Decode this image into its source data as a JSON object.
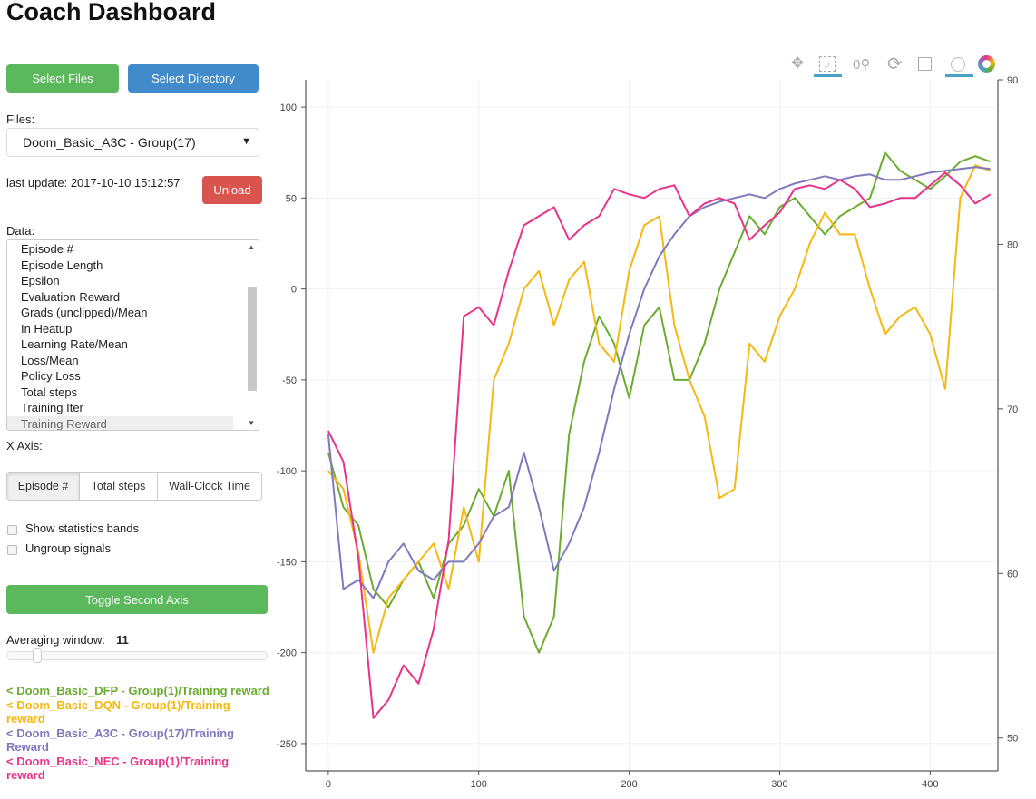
{
  "title": "Coach Dashboard",
  "buttons": {
    "select_files": "Select Files",
    "select_directory": "Select Directory",
    "unload": "Unload",
    "toggle_second_axis": "Toggle Second Axis"
  },
  "files": {
    "label": "Files:",
    "selected": "Doom_Basic_A3C - Group(17)"
  },
  "last_update": "last update: 2017-10-10 15:12:57",
  "data": {
    "label": "Data:",
    "items": [
      "Episode #",
      "Episode Length",
      "Epsilon",
      "Evaluation Reward",
      "Grads (unclipped)/Mean",
      "In Heatup",
      "Learning Rate/Mean",
      "Loss/Mean",
      "Policy Loss",
      "Total steps",
      "Training Iter",
      "Training Reward"
    ],
    "selected": "Training Reward"
  },
  "x_axis": {
    "label": "X Axis:",
    "options": [
      "Episode #",
      "Total steps",
      "Wall-Clock Time"
    ],
    "selected": "Episode #"
  },
  "checkboxes": [
    {
      "label": "Show statistics bands",
      "checked": false
    },
    {
      "label": "Ungroup signals",
      "checked": false
    }
  ],
  "averaging": {
    "label": "Averaging window:",
    "value": "11",
    "fraction": 0.1
  },
  "legend": [
    {
      "text": "< Doom_Basic_DFP - Group(1)/Training reward",
      "color": "#6aac2f"
    },
    {
      "text": "< Doom_Basic_DQN - Group(1)/Training reward",
      "color": "#f5b810"
    },
    {
      "text": "< Doom_Basic_A3C - Group(17)/Training Reward",
      "color": "#7f79bd"
    },
    {
      "text": "< Doom_Basic_NEC - Group(1)/Training reward",
      "color": "#e9338a"
    }
  ],
  "toolbar": [
    "pan-icon",
    "box-zoom-icon",
    "wheel-zoom-icon",
    "reset-icon",
    "save-icon",
    "crosshair-icon",
    "bokeh-logo-icon"
  ],
  "chart_data": {
    "type": "line",
    "xlim": [
      -15,
      445
    ],
    "ylim": [
      -265,
      115
    ],
    "y2lim": [
      48,
      90
    ],
    "xticks": [
      "0",
      "100",
      "200",
      "300",
      "400"
    ],
    "yticks": [
      "100",
      "50",
      "0",
      "-50",
      "-100",
      "-150",
      "-200",
      "-250"
    ],
    "y2ticks": [
      "90",
      "80",
      "70",
      "60",
      "50"
    ],
    "grid": true,
    "x": [
      0,
      10,
      20,
      30,
      40,
      50,
      60,
      70,
      80,
      90,
      100,
      110,
      120,
      130,
      140,
      150,
      160,
      170,
      180,
      190,
      200,
      210,
      220,
      230,
      240,
      250,
      260,
      270,
      280,
      290,
      300,
      310,
      320,
      330,
      340,
      350,
      360,
      370,
      380,
      390,
      400,
      410,
      420,
      430,
      440
    ],
    "series": [
      {
        "name": "< Doom_Basic_DFP - Group(1)/Training reward",
        "color": "#6aac2f",
        "values": [
          -90,
          -120,
          -130,
          -165,
          -175,
          -160,
          -150,
          -170,
          -140,
          -130,
          -110,
          -125,
          -100,
          -180,
          -200,
          -180,
          -80,
          -40,
          -15,
          -30,
          -60,
          -20,
          -10,
          -50,
          -50,
          -30,
          0,
          20,
          40,
          30,
          45,
          50,
          40,
          30,
          40,
          45,
          50,
          75,
          65,
          60,
          55,
          62,
          70,
          73,
          70
        ]
      },
      {
        "name": "< Doom_Basic_DQN - Group(1)/Training reward",
        "color": "#f5b810",
        "values": [
          -100,
          -110,
          -145,
          -200,
          -170,
          -160,
          -150,
          -140,
          -165,
          -120,
          -150,
          -50,
          -30,
          0,
          10,
          -20,
          5,
          15,
          -30,
          -40,
          10,
          35,
          40,
          -20,
          -50,
          -70,
          -115,
          -110,
          -30,
          -40,
          -15,
          0,
          25,
          42,
          30,
          30,
          0,
          -25,
          -15,
          -10,
          -25,
          -55,
          50,
          68,
          65
        ]
      },
      {
        "name": "< Doom_Basic_A3C - Group(17)/Training Reward",
        "color": "#7f79bd",
        "values": [
          -80,
          -165,
          -160,
          -170,
          -150,
          -140,
          -155,
          -160,
          -150,
          -150,
          -140,
          -125,
          -120,
          -90,
          -120,
          -155,
          -140,
          -120,
          -90,
          -55,
          -25,
          0,
          18,
          30,
          40,
          45,
          48,
          50,
          52,
          50,
          55,
          58,
          60,
          62,
          60,
          62,
          63,
          60,
          60,
          62,
          64,
          65,
          66,
          67,
          66
        ]
      },
      {
        "name": "< Doom_Basic_NEC - Group(1)/Training reward",
        "color": "#e9338a",
        "values": [
          -78,
          -95,
          -148,
          -236,
          -226,
          -207,
          -217,
          -187,
          -138,
          -15,
          -10,
          -20,
          10,
          35,
          40,
          45,
          27,
          35,
          40,
          55,
          52,
          50,
          55,
          57,
          40,
          47,
          50,
          47,
          27,
          35,
          42,
          55,
          57,
          55,
          60,
          55,
          45,
          47,
          50,
          50,
          57,
          64,
          57,
          47,
          52
        ]
      }
    ]
  }
}
